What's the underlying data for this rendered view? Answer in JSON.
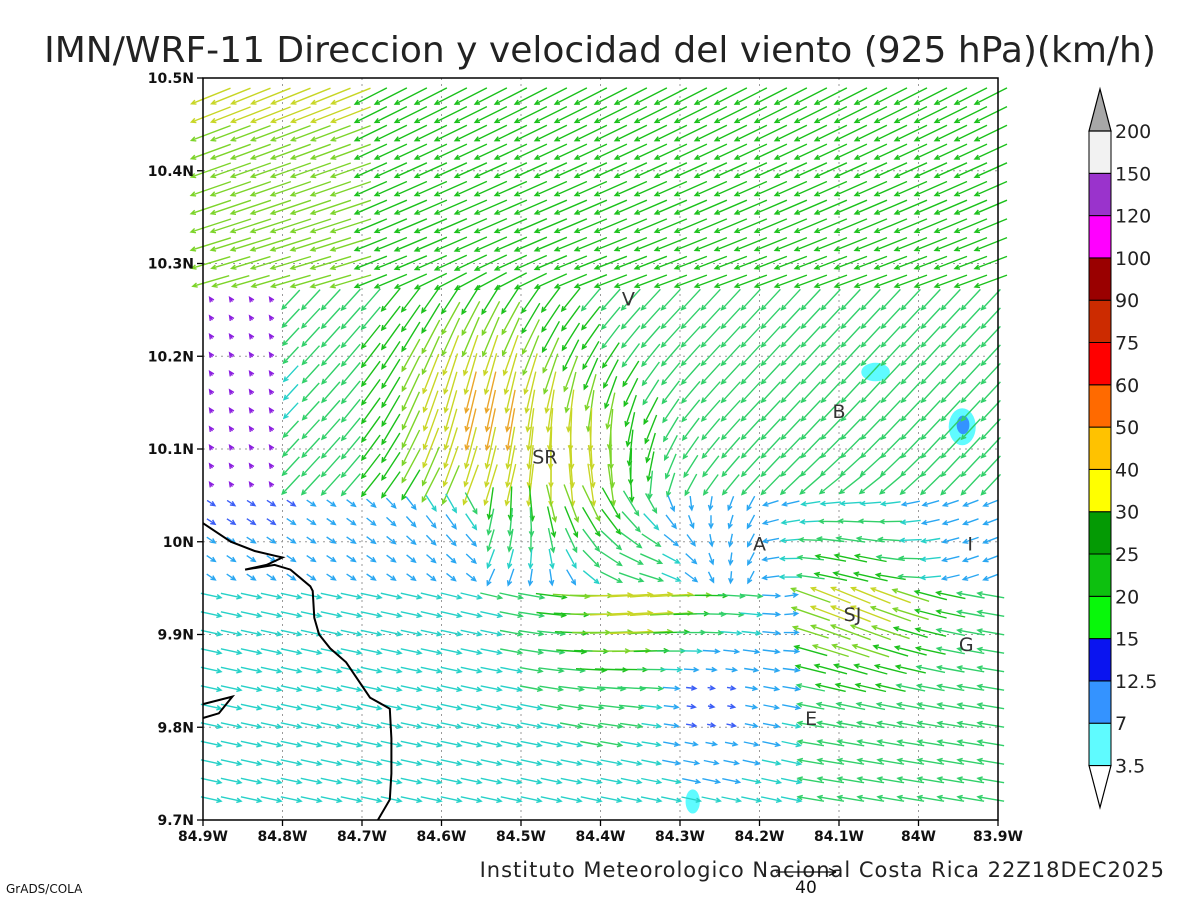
{
  "title": "IMN/WRF-11 Direccion y velocidad del viento (925 hPa)(km/h)",
  "footer": "Instituto Meteorologico Nacional Costa Rica 22Z18DEC2025",
  "credit": "GrADS/COLA",
  "reference_vector": {
    "value": "40"
  },
  "map": {
    "lon_range": [
      -84.9,
      -83.9
    ],
    "lat_range": [
      9.7,
      10.5
    ],
    "grid": true,
    "lon_ticks": [
      {
        "v": -84.9,
        "label": "84.9W"
      },
      {
        "v": -84.8,
        "label": "84.8W"
      },
      {
        "v": -84.7,
        "label": "84.7W"
      },
      {
        "v": -84.6,
        "label": "84.6W"
      },
      {
        "v": -84.5,
        "label": "84.5W"
      },
      {
        "v": -84.4,
        "label": "84.4W"
      },
      {
        "v": -84.3,
        "label": "84.3W"
      },
      {
        "v": -84.2,
        "label": "84.2W"
      },
      {
        "v": -84.1,
        "label": "84.1W"
      },
      {
        "v": -84.0,
        "label": "84W"
      },
      {
        "v": -83.9,
        "label": "83.9W"
      }
    ],
    "lat_ticks": [
      {
        "v": 10.5,
        "label": "10.5N"
      },
      {
        "v": 10.4,
        "label": "10.4N"
      },
      {
        "v": 10.3,
        "label": "10.3N"
      },
      {
        "v": 10.2,
        "label": "10.2N"
      },
      {
        "v": 10.1,
        "label": "10.1N"
      },
      {
        "v": 10.0,
        "label": "10N"
      },
      {
        "v": 9.9,
        "label": "9.9N"
      },
      {
        "v": 9.8,
        "label": "9.8N"
      },
      {
        "v": 9.7,
        "label": "9.7N"
      }
    ],
    "places": [
      {
        "code": "V",
        "lon": -84.365,
        "lat": 10.262
      },
      {
        "code": "B",
        "lon": -84.1,
        "lat": 10.141
      },
      {
        "code": "SR",
        "lon": -84.47,
        "lat": 10.092
      },
      {
        "code": "A",
        "lon": -84.2,
        "lat": 9.998
      },
      {
        "code": "I",
        "lon": -83.935,
        "lat": 9.998
      },
      {
        "code": "SJ",
        "lon": -84.083,
        "lat": 9.922
      },
      {
        "code": "G",
        "lon": -83.94,
        "lat": 9.89
      },
      {
        "code": "E",
        "lon": -84.135,
        "lat": 9.81
      }
    ],
    "coastline": [
      [
        -84.9,
        10.02
      ],
      [
        -84.865,
        10.0
      ],
      [
        -84.835,
        9.99
      ],
      [
        -84.81,
        9.985
      ],
      [
        -84.8,
        9.983
      ],
      [
        -84.82,
        9.975
      ],
      [
        -84.847,
        9.97
      ],
      [
        -84.81,
        9.975
      ],
      [
        -84.79,
        9.97
      ],
      [
        -84.765,
        9.952
      ],
      [
        -84.762,
        9.947
      ],
      [
        -84.76,
        9.918
      ],
      [
        -84.754,
        9.9
      ],
      [
        -84.74,
        9.885
      ],
      [
        -84.72,
        9.87
      ],
      [
        -84.69,
        9.832
      ],
      [
        -84.665,
        9.82
      ],
      [
        -84.663,
        9.788
      ],
      [
        -84.663,
        9.75
      ],
      [
        -84.665,
        9.722
      ],
      [
        -84.68,
        9.7
      ]
    ],
    "coastline_inlet": [
      [
        -84.9,
        9.825
      ],
      [
        -84.863,
        9.833
      ],
      [
        -84.88,
        9.815
      ],
      [
        -84.9,
        9.81
      ]
    ],
    "shaded_speed_areas": [
      {
        "lon": -84.054,
        "lat": 10.183,
        "rx": 0.018,
        "ry": 0.01,
        "class": "3.5"
      },
      {
        "lon": -83.945,
        "lat": 10.124,
        "rx": 0.017,
        "ry": 0.02,
        "class": "3.5"
      },
      {
        "lon": -83.944,
        "lat": 10.126,
        "rx": 0.008,
        "ry": 0.01,
        "class": "7"
      },
      {
        "lon": -84.284,
        "lat": 9.72,
        "rx": 0.009,
        "ry": 0.013,
        "class": "3.5"
      }
    ]
  },
  "colorbar": {
    "labels": [
      "3.5",
      "7",
      "12.5",
      "15",
      "20",
      "25",
      "30",
      "40",
      "50",
      "60",
      "75",
      "90",
      "100",
      "120",
      "150",
      "200"
    ],
    "colors": [
      "#ffffff",
      "#5ffbff",
      "#3493ff",
      "#0a14f0",
      "#08f80a",
      "#0dc00f",
      "#049a04",
      "#ffff00",
      "#ffc200",
      "#ff6a00",
      "#ff0000",
      "#cc2b00",
      "#9a0000",
      "#ff00ff",
      "#9a33cc",
      "#f2f2f2",
      "#a7a7a7"
    ]
  },
  "speed_class_colors": {
    "lt3.5": "#8c1fe0",
    "3.5-7": "#3c5ef6",
    "7-12.5": "#2aa7f2",
    "12.5-15": "#27d1c8",
    "15-20": "#32d06a",
    "20-25": "#1cc11c",
    "25-30": "#7dd42a",
    "30-40": "#c8d626",
    "40-50": "#eaa62a",
    "50-60": "#e36b1c",
    "60-75": "#e01060"
  }
}
